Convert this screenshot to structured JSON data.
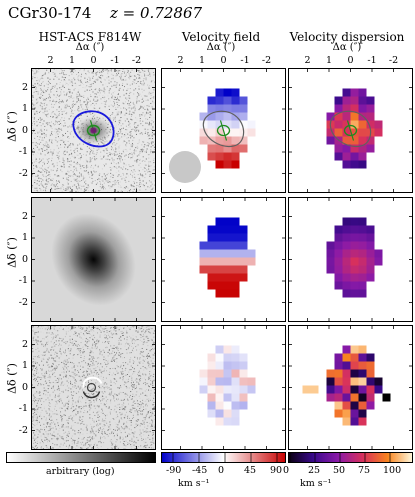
{
  "header": {
    "object_id": "CGr30-174",
    "redshift": "z = 0.72867"
  },
  "columns": [
    {
      "title": "HST-ACS F814W",
      "xlabel": "Δα (″)"
    },
    {
      "title": "Velocity field",
      "xlabel": "Δα (″)"
    },
    {
      "title": "Velocity dispersion",
      "xlabel": "Δα (″)"
    }
  ],
  "x_ticks": [
    "2",
    "1",
    "0",
    "-1",
    "-2"
  ],
  "y_ticks": [
    "2",
    "1",
    "0",
    "-1",
    "-2"
  ],
  "ylabel": "Δδ (″)",
  "colorbars": [
    {
      "label": "arbitrary (log)",
      "ticks": [],
      "unit": ""
    },
    {
      "label": "",
      "ticks": [
        "-90",
        "-45",
        "0",
        "45",
        "90"
      ],
      "unit": "km s⁻¹"
    },
    {
      "label": "",
      "ticks": [
        "0",
        "25",
        "50",
        "75",
        "100"
      ],
      "unit": "km s⁻¹"
    }
  ],
  "colors": {
    "contour_blue": "#1a1adc",
    "contour_green": "#1e8c1e",
    "psf_disk": "#c8c8c8"
  }
}
